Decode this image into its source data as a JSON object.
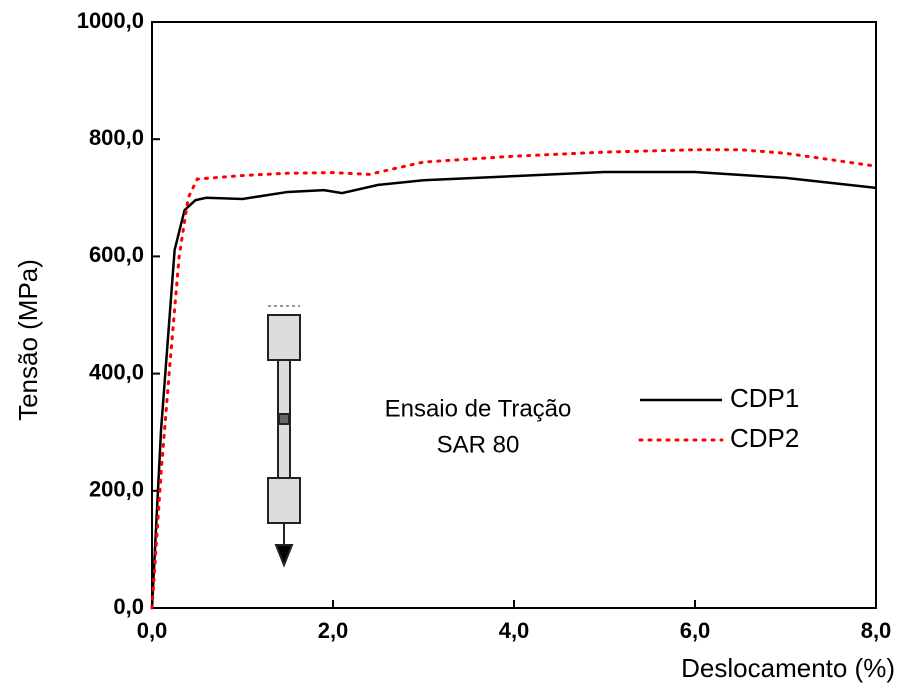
{
  "chart_data": {
    "type": "line",
    "x_label": "Deslocamento (%)",
    "y_label": "Tensão (MPa)",
    "annotations": [
      "Ensaio de Tração",
      "SAR 80"
    ],
    "xlim": [
      0,
      8
    ],
    "ylim": [
      0,
      1000
    ],
    "xticks": [
      {
        "value": 0,
        "label": "0,0"
      },
      {
        "value": 2,
        "label": "2,0"
      },
      {
        "value": 4,
        "label": "4,0"
      },
      {
        "value": 6,
        "label": "6,0"
      },
      {
        "value": 8,
        "label": "8,0"
      }
    ],
    "yticks": [
      {
        "value": 0,
        "label": "0,0"
      },
      {
        "value": 200,
        "label": "200,0"
      },
      {
        "value": 400,
        "label": "400,0"
      },
      {
        "value": 600,
        "label": "600,0"
      },
      {
        "value": 800,
        "label": "800,0"
      },
      {
        "value": 1000,
        "label": "1000,0"
      }
    ],
    "series": [
      {
        "name": "CDP1",
        "color": "#000000",
        "style": "solid",
        "x": [
          0,
          0.1,
          0.25,
          0.36,
          0.48,
          0.6,
          1.0,
          1.5,
          1.9,
          2.1,
          2.5,
          3.0,
          4.0,
          5.0,
          6.0,
          7.0,
          8.0
        ],
        "values": [
          0,
          304,
          611,
          679,
          696,
          700,
          698,
          710,
          713,
          708,
          722,
          730,
          737,
          744,
          744,
          734,
          717
        ]
      },
      {
        "name": "CDP2",
        "color": "#ff0000",
        "style": "dotted",
        "x": [
          0,
          0.1,
          0.2,
          0.3,
          0.4,
          0.5,
          1.0,
          1.5,
          2.0,
          2.4,
          3.0,
          4.0,
          5.0,
          6.0,
          6.5,
          7.0,
          8.0
        ],
        "values": [
          0,
          230,
          420,
          600,
          700,
          732,
          738,
          742,
          743,
          740,
          761,
          771,
          778,
          782,
          782,
          776,
          754
        ]
      }
    ]
  }
}
